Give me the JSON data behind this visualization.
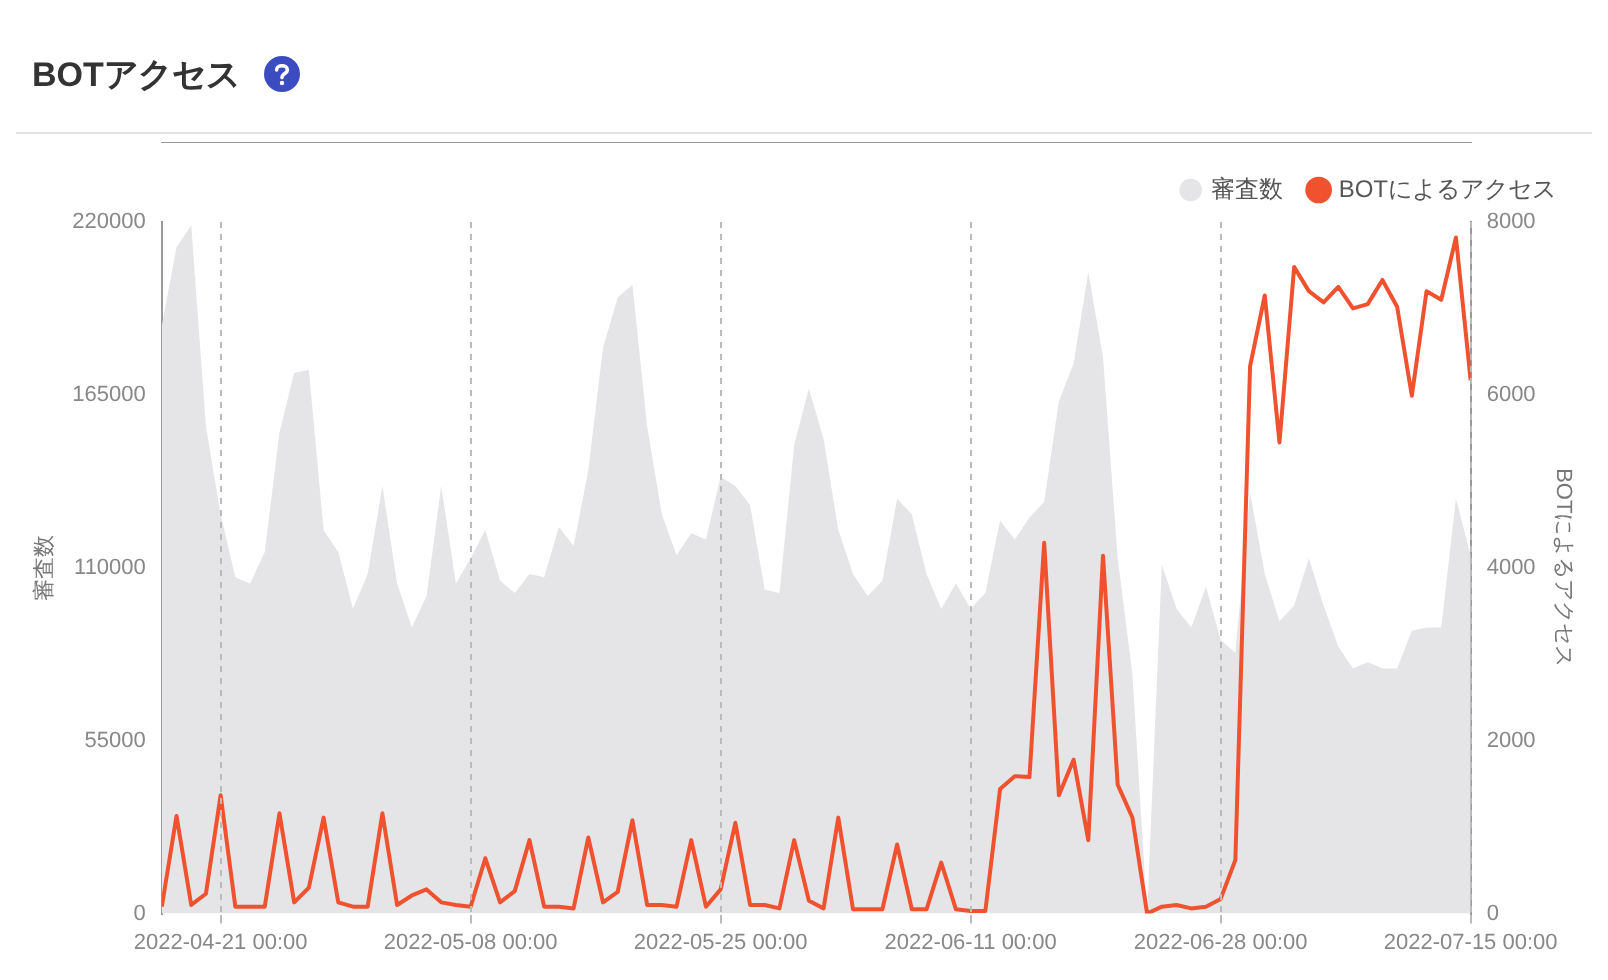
{
  "chart_data": {
    "type": "line",
    "title": "BOTアクセス",
    "ylabel": "審査数",
    "y2label": "BOTによるアクセス",
    "x": [
      "2022-04-17",
      "2022-04-18",
      "2022-04-19",
      "2022-04-20",
      "2022-04-21",
      "2022-04-22",
      "2022-04-23",
      "2022-04-24",
      "2022-04-25",
      "2022-04-26",
      "2022-04-27",
      "2022-04-28",
      "2022-04-29",
      "2022-04-30",
      "2022-05-01",
      "2022-05-02",
      "2022-05-03",
      "2022-05-04",
      "2022-05-05",
      "2022-05-06",
      "2022-05-07",
      "2022-05-08",
      "2022-05-09",
      "2022-05-10",
      "2022-05-11",
      "2022-05-12",
      "2022-05-13",
      "2022-05-14",
      "2022-05-15",
      "2022-05-16",
      "2022-05-17",
      "2022-05-18",
      "2022-05-19",
      "2022-05-20",
      "2022-05-21",
      "2022-05-22",
      "2022-05-23",
      "2022-05-24",
      "2022-05-25",
      "2022-05-26",
      "2022-05-27",
      "2022-05-28",
      "2022-05-29",
      "2022-05-30",
      "2022-05-31",
      "2022-06-01",
      "2022-06-02",
      "2022-06-03",
      "2022-06-04",
      "2022-06-05",
      "2022-06-06",
      "2022-06-07",
      "2022-06-08",
      "2022-06-09",
      "2022-06-10",
      "2022-06-11",
      "2022-06-12",
      "2022-06-13",
      "2022-06-14",
      "2022-06-15",
      "2022-06-16",
      "2022-06-17",
      "2022-06-18",
      "2022-06-19",
      "2022-06-20",
      "2022-06-21",
      "2022-06-22",
      "2022-06-23",
      "2022-06-24",
      "2022-06-25",
      "2022-06-26",
      "2022-06-27",
      "2022-06-28",
      "2022-06-29",
      "2022-06-30",
      "2022-07-01",
      "2022-07-02",
      "2022-07-03",
      "2022-07-04",
      "2022-07-05",
      "2022-07-06",
      "2022-07-07",
      "2022-07-08",
      "2022-07-09",
      "2022-07-10",
      "2022-07-11",
      "2022-07-12",
      "2022-07-13",
      "2022-07-14",
      "2022-07-15"
    ],
    "series": [
      {
        "name": "審査数",
        "type": "area",
        "color": "#e5e5e8",
        "values": [
          187000,
          212000,
          219000,
          155000,
          127000,
          107000,
          105000,
          115000,
          153000,
          172000,
          173000,
          122000,
          115000,
          97000,
          108000,
          136000,
          105000,
          91000,
          101000,
          136000,
          105000,
          113000,
          122000,
          106000,
          102000,
          108000,
          107000,
          123000,
          117000,
          141000,
          180000,
          196000,
          200000,
          155000,
          127000,
          114000,
          121000,
          119000,
          139000,
          136000,
          130000,
          103000,
          102000,
          149000,
          167000,
          151000,
          122000,
          108000,
          101000,
          106000,
          132000,
          127000,
          108000,
          97000,
          105000,
          97000,
          102000,
          125000,
          119000,
          126000,
          131000,
          163000,
          175000,
          204000,
          177000,
          113000,
          76000,
          0,
          111000,
          97000,
          91000,
          104000,
          87000,
          83000,
          134000,
          108000,
          93000,
          98000,
          113000,
          98000,
          85000,
          78000,
          80000,
          78000,
          78000,
          90000,
          91000,
          91000,
          132000,
          114000
        ]
      },
      {
        "name": "BOTによるアクセス",
        "type": "line",
        "axis": "y2",
        "color": "#f0522f",
        "values": [
          80,
          1130,
          100,
          230,
          1370,
          80,
          80,
          80,
          1160,
          130,
          300,
          1110,
          130,
          80,
          80,
          1160,
          100,
          210,
          280,
          130,
          100,
          80,
          640,
          130,
          260,
          850,
          80,
          80,
          60,
          880,
          130,
          250,
          1080,
          100,
          100,
          80,
          850,
          80,
          280,
          1050,
          100,
          100,
          60,
          850,
          150,
          60,
          1110,
          50,
          50,
          50,
          800,
          50,
          50,
          590,
          50,
          30,
          30,
          1440,
          1590,
          1580,
          4290,
          1370,
          1780,
          850,
          4140,
          1490,
          1110,
          0,
          80,
          100,
          60,
          80,
          170,
          620,
          6330,
          7150,
          5450,
          7480,
          7200,
          7070,
          7250,
          7000,
          7050,
          7330,
          7020,
          5990,
          7200,
          7100,
          7820,
          6170
        ]
      }
    ],
    "xlim": [
      "2022-04-17",
      "2022-07-15"
    ],
    "xticks": [
      {
        "value": "2022-04-21",
        "label": "2022-04-21 00:00"
      },
      {
        "value": "2022-05-08",
        "label": "2022-05-08 00:00"
      },
      {
        "value": "2022-05-25",
        "label": "2022-05-25 00:00"
      },
      {
        "value": "2022-06-11",
        "label": "2022-06-11 00:00"
      },
      {
        "value": "2022-06-28",
        "label": "2022-06-28 00:00"
      },
      {
        "value": "2022-07-15",
        "label": "2022-07-15 00:00"
      }
    ],
    "ylim": [
      0,
      220000
    ],
    "yticks": [
      0,
      55000,
      110000,
      165000,
      220000
    ],
    "y2lim": [
      0,
      8000
    ],
    "y2ticks": [
      0,
      2000,
      4000,
      6000,
      8000
    ],
    "grid": "x",
    "legend": "top right",
    "marker": "none",
    "line_style": "solid"
  }
}
